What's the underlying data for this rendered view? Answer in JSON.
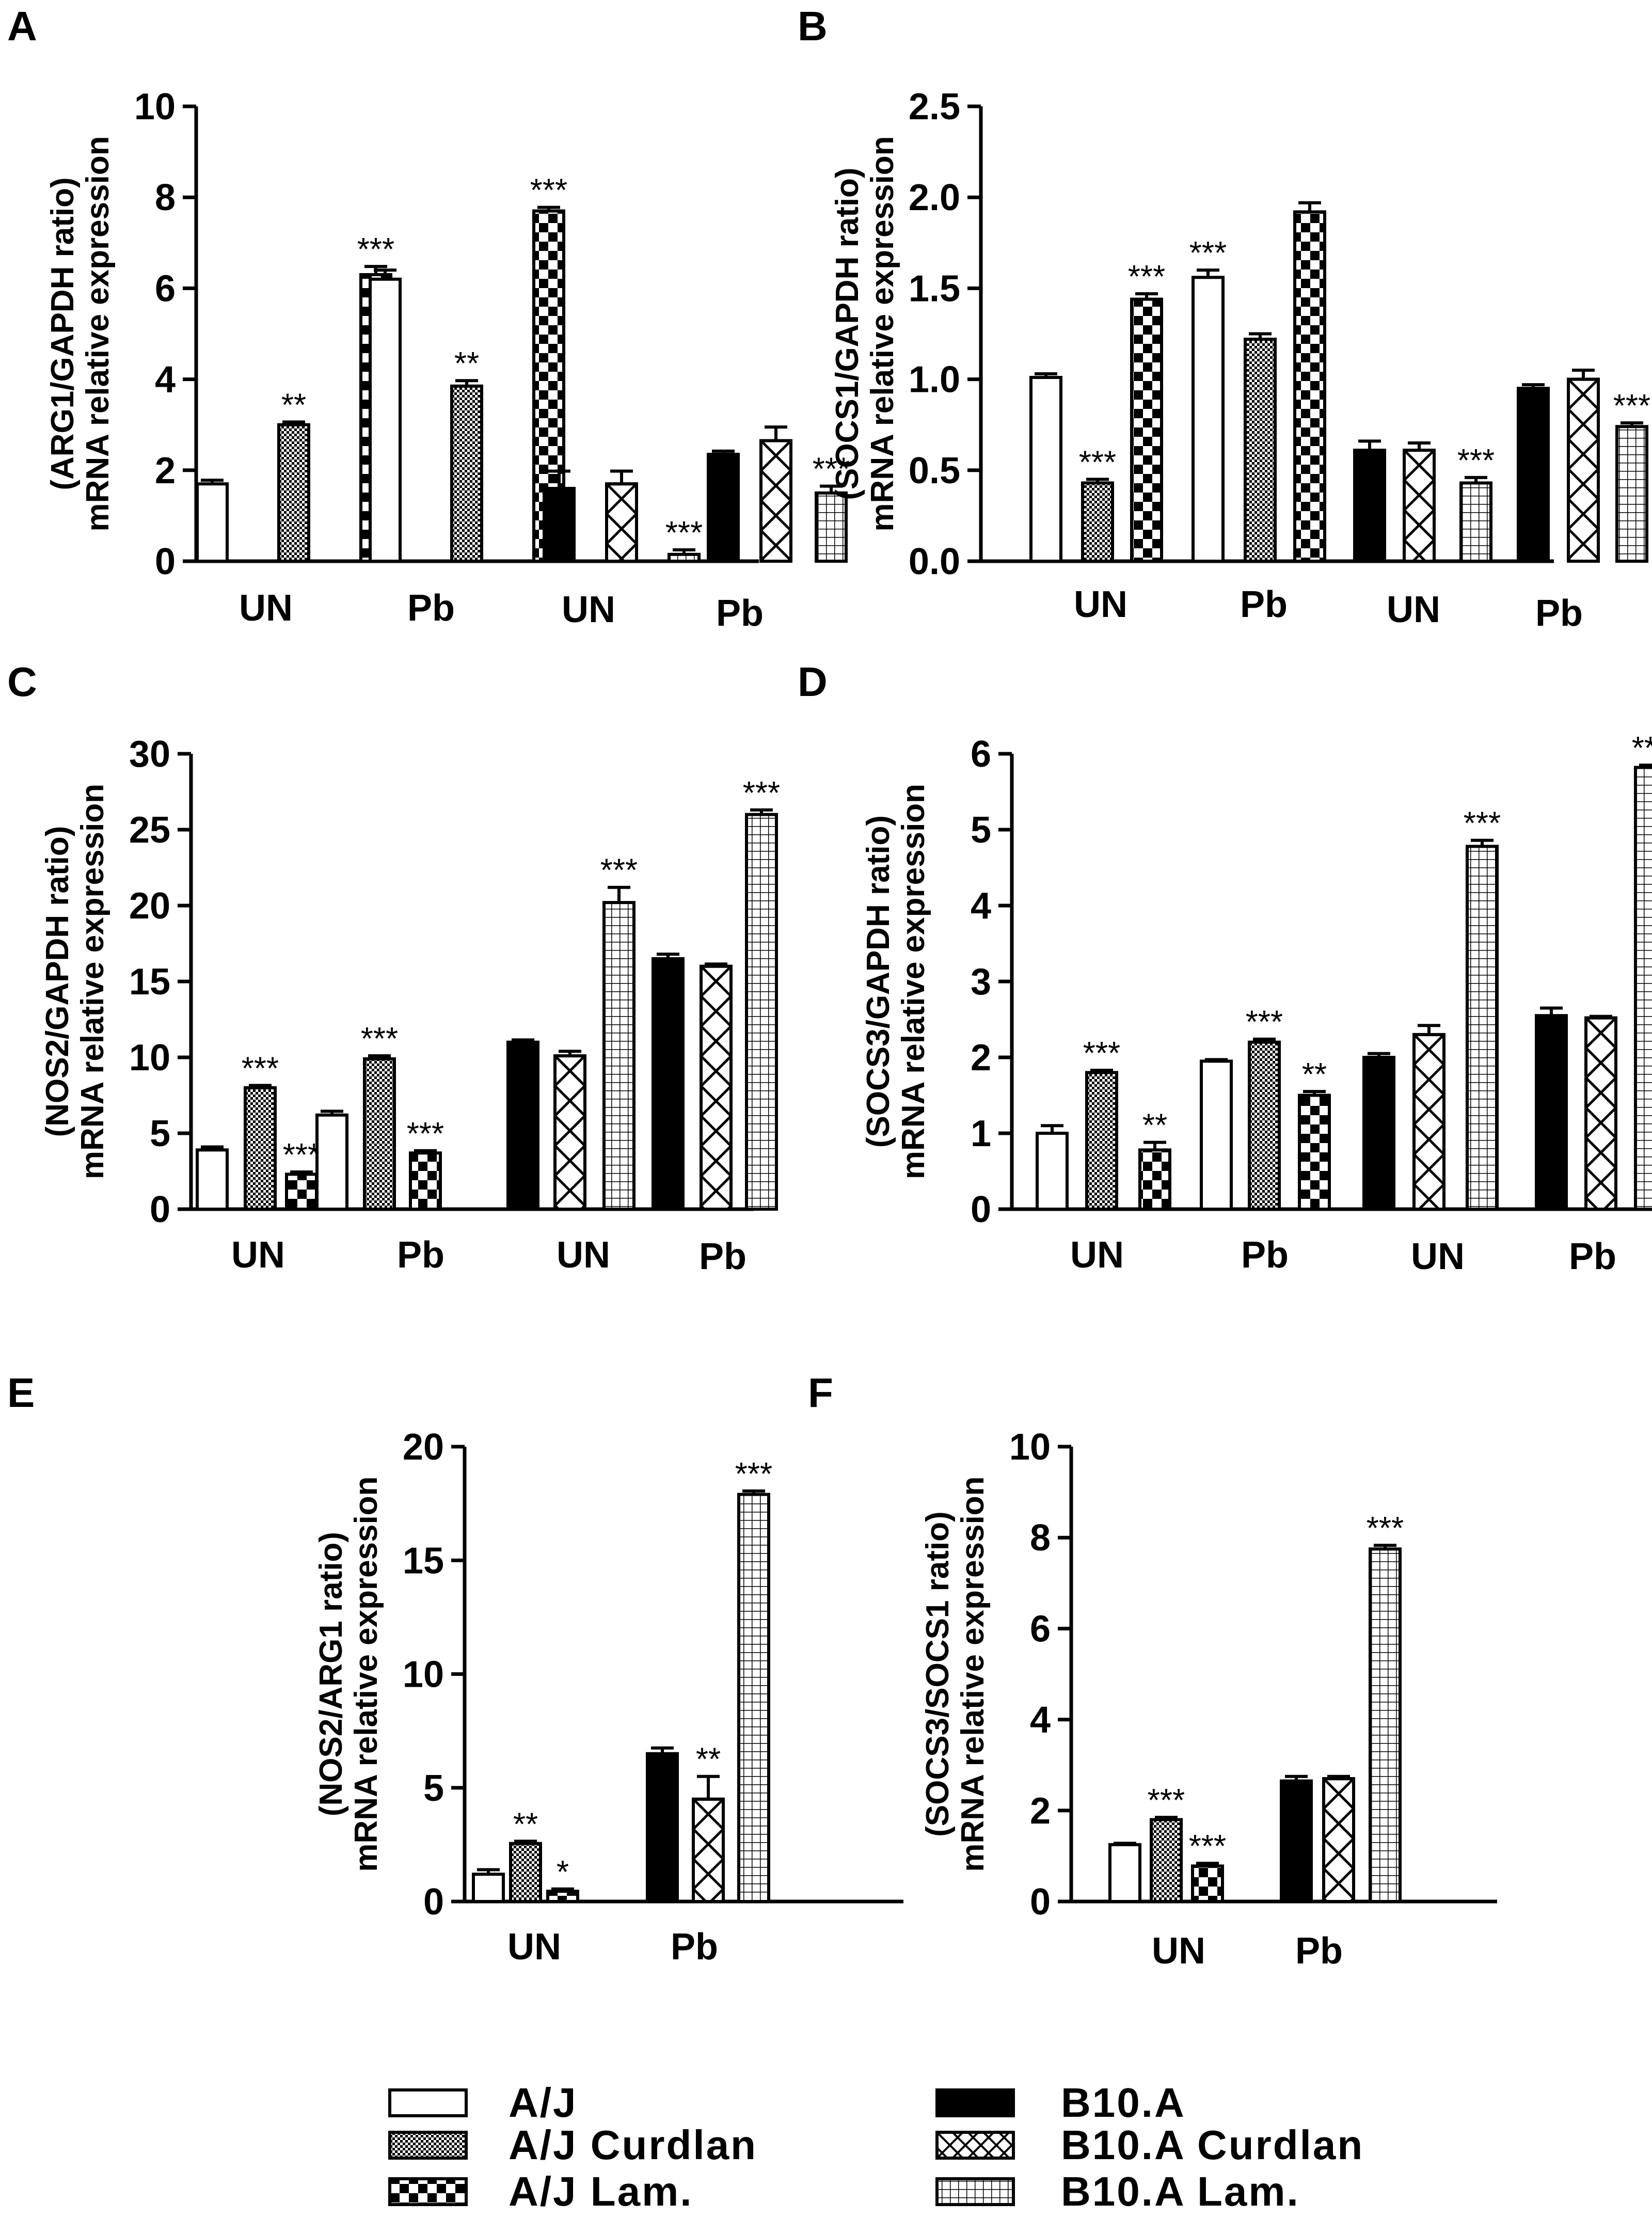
{
  "legend": [
    {
      "key": "aj",
      "label": "A/J"
    },
    {
      "key": "aj_curdlan",
      "label": "A/J Curdlan"
    },
    {
      "key": "aj_lam",
      "label": "A/J Lam."
    },
    {
      "key": "b10a",
      "label": "B10.A"
    },
    {
      "key": "b10a_curdlan",
      "label": "B10.A Curdlan"
    },
    {
      "key": "b10a_lam",
      "label": "B10.A Lam."
    }
  ],
  "chart_data": [
    {
      "panel": "A",
      "type": "bar",
      "ylabel_line1": "(ARG1/GAPDH ratio)",
      "ylabel_line2": "mRNA relative expression",
      "ylim": [
        0,
        10
      ],
      "yticks": [
        "0",
        "2",
        "4",
        "6",
        "8",
        "10"
      ],
      "groups": [
        {
          "label": "UN",
          "bars": [
            {
              "series": "aj",
              "value": 1.7,
              "err": 0.08,
              "sig": ""
            },
            {
              "series": "aj_curdlan",
              "value": 3.0,
              "err": 0.06,
              "sig": "**"
            },
            {
              "series": "aj_lam",
              "value": 6.3,
              "err": 0.18,
              "sig": "***"
            }
          ]
        },
        {
          "label": "Pb",
          "bars": [
            {
              "series": "aj",
              "value": 6.2,
              "err": 0.2,
              "sig": ""
            },
            {
              "series": "aj_curdlan",
              "value": 3.85,
              "err": 0.12,
              "sig": "**"
            },
            {
              "series": "aj_lam",
              "value": 7.7,
              "err": 0.08,
              "sig": "***"
            }
          ]
        },
        {
          "label": "UN",
          "bars": [
            {
              "series": "b10a",
              "value": 1.6,
              "err": 0.38,
              "sig": ""
            },
            {
              "series": "b10a_curdlan",
              "value": 1.7,
              "err": 0.28,
              "sig": ""
            },
            {
              "series": "b10a_lam",
              "value": 0.15,
              "err": 0.1,
              "sig": "***"
            }
          ]
        },
        {
          "label": "Pb",
          "bars": [
            {
              "series": "b10a",
              "value": 2.35,
              "err": 0.07,
              "sig": ""
            },
            {
              "series": "b10a_curdlan",
              "value": 2.65,
              "err": 0.3,
              "sig": ""
            },
            {
              "series": "b10a_lam",
              "value": 1.5,
              "err": 0.15,
              "sig": "***"
            }
          ]
        }
      ]
    },
    {
      "panel": "B",
      "type": "bar",
      "ylabel_line1": "(SOCS1/GAPDH ratio)",
      "ylabel_line2": "mRNA relative expression",
      "ylim": [
        0,
        2.5
      ],
      "yticks": [
        "0.0",
        "0.5",
        "1.0",
        "1.5",
        "2.0",
        "2.5"
      ],
      "groups": [
        {
          "label": "UN",
          "bars": [
            {
              "series": "aj",
              "value": 1.01,
              "err": 0.02,
              "sig": ""
            },
            {
              "series": "aj_curdlan",
              "value": 0.43,
              "err": 0.02,
              "sig": "***"
            },
            {
              "series": "aj_lam",
              "value": 1.44,
              "err": 0.03,
              "sig": "***"
            }
          ]
        },
        {
          "label": "Pb",
          "bars": [
            {
              "series": "aj",
              "value": 1.56,
              "err": 0.04,
              "sig": "***"
            },
            {
              "series": "aj_curdlan",
              "value": 1.22,
              "err": 0.03,
              "sig": ""
            },
            {
              "series": "aj_lam",
              "value": 1.92,
              "err": 0.05,
              "sig": ""
            }
          ]
        },
        {
          "label": "UN",
          "bars": [
            {
              "series": "b10a",
              "value": 0.61,
              "err": 0.05,
              "sig": ""
            },
            {
              "series": "b10a_curdlan",
              "value": 0.61,
              "err": 0.04,
              "sig": ""
            },
            {
              "series": "b10a_lam",
              "value": 0.43,
              "err": 0.03,
              "sig": "***"
            }
          ]
        },
        {
          "label": "Pb",
          "bars": [
            {
              "series": "b10a",
              "value": 0.95,
              "err": 0.02,
              "sig": ""
            },
            {
              "series": "b10a_curdlan",
              "value": 1.0,
              "err": 0.05,
              "sig": ""
            },
            {
              "series": "b10a_lam",
              "value": 0.74,
              "err": 0.02,
              "sig": "***"
            }
          ]
        }
      ]
    },
    {
      "panel": "C",
      "type": "bar",
      "ylabel_line1": "(NOS2/GAPDH ratio)",
      "ylabel_line2": "mRNA relative expression",
      "ylim": [
        0,
        30
      ],
      "yticks": [
        "0",
        "5",
        "10",
        "15",
        "20",
        "25",
        "30"
      ],
      "groups": [
        {
          "label": "UN",
          "bars": [
            {
              "series": "aj",
              "value": 3.9,
              "err": 0.2,
              "sig": ""
            },
            {
              "series": "aj_curdlan",
              "value": 8.0,
              "err": 0.15,
              "sig": "***"
            },
            {
              "series": "aj_lam",
              "value": 2.3,
              "err": 0.15,
              "sig": "***"
            }
          ]
        },
        {
          "label": "Pb",
          "bars": [
            {
              "series": "aj",
              "value": 6.2,
              "err": 0.25,
              "sig": ""
            },
            {
              "series": "aj_curdlan",
              "value": 9.9,
              "err": 0.2,
              "sig": "***"
            },
            {
              "series": "aj_lam",
              "value": 3.7,
              "err": 0.15,
              "sig": "***"
            }
          ]
        },
        {
          "label": "UN",
          "bars": [
            {
              "series": "b10a",
              "value": 11.0,
              "err": 0.15,
              "sig": ""
            },
            {
              "series": "b10a_curdlan",
              "value": 10.1,
              "err": 0.3,
              "sig": ""
            },
            {
              "series": "b10a_lam",
              "value": 20.2,
              "err": 1.0,
              "sig": "***"
            }
          ]
        },
        {
          "label": "Pb",
          "bars": [
            {
              "series": "b10a",
              "value": 16.5,
              "err": 0.3,
              "sig": ""
            },
            {
              "series": "b10a_curdlan",
              "value": 16.0,
              "err": 0.15,
              "sig": ""
            },
            {
              "series": "b10a_lam",
              "value": 26.0,
              "err": 0.3,
              "sig": "***"
            }
          ]
        }
      ]
    },
    {
      "panel": "D",
      "type": "bar",
      "ylabel_line1": "(SOCS3/GAPDH ratio)",
      "ylabel_line2": "mRNA relative expression",
      "ylim": [
        0,
        6
      ],
      "yticks": [
        "0",
        "1",
        "2",
        "3",
        "4",
        "5",
        "6"
      ],
      "groups": [
        {
          "label": "UN",
          "bars": [
            {
              "series": "aj",
              "value": 1.0,
              "err": 0.1,
              "sig": ""
            },
            {
              "series": "aj_curdlan",
              "value": 1.8,
              "err": 0.03,
              "sig": "***"
            },
            {
              "series": "aj_lam",
              "value": 0.78,
              "err": 0.1,
              "sig": "**"
            }
          ]
        },
        {
          "label": "Pb",
          "bars": [
            {
              "series": "aj",
              "value": 1.95,
              "err": 0.02,
              "sig": ""
            },
            {
              "series": "aj_curdlan",
              "value": 2.2,
              "err": 0.04,
              "sig": "***"
            },
            {
              "series": "aj_lam",
              "value": 1.5,
              "err": 0.05,
              "sig": "**"
            }
          ]
        },
        {
          "label": "UN",
          "bars": [
            {
              "series": "b10a",
              "value": 2.0,
              "err": 0.05,
              "sig": ""
            },
            {
              "series": "b10a_curdlan",
              "value": 2.3,
              "err": 0.12,
              "sig": ""
            },
            {
              "series": "b10a_lam",
              "value": 4.78,
              "err": 0.08,
              "sig": "***"
            }
          ]
        },
        {
          "label": "Pb",
          "bars": [
            {
              "series": "b10a",
              "value": 2.55,
              "err": 0.1,
              "sig": ""
            },
            {
              "series": "b10a_curdlan",
              "value": 2.52,
              "err": 0.02,
              "sig": ""
            },
            {
              "series": "b10a_lam",
              "value": 5.82,
              "err": 0.03,
              "sig": "***"
            }
          ]
        }
      ]
    },
    {
      "panel": "E",
      "type": "bar",
      "ylabel_line1": "(NOS2/ARG1 ratio)",
      "ylabel_line2": "mRNA relative expression",
      "ylim": [
        0,
        20
      ],
      "yticks": [
        "0",
        "5",
        "10",
        "15",
        "20"
      ],
      "groups": [
        {
          "label": "UN",
          "bars": [
            {
              "series": "aj",
              "value": 1.2,
              "err": 0.2,
              "sig": ""
            },
            {
              "series": "aj_curdlan",
              "value": 2.55,
              "err": 0.1,
              "sig": "**"
            },
            {
              "series": "aj_lam",
              "value": 0.45,
              "err": 0.1,
              "sig": "*"
            }
          ]
        },
        {
          "label": "Pb",
          "bars": [
            {
              "series": "b10a",
              "value": 6.5,
              "err": 0.25,
              "sig": ""
            },
            {
              "series": "b10a_curdlan",
              "value": 4.5,
              "err": 1.0,
              "sig": "**"
            },
            {
              "series": "b10a_lam",
              "value": 17.9,
              "err": 0.15,
              "sig": "***"
            }
          ]
        }
      ]
    },
    {
      "panel": "F",
      "type": "bar",
      "ylabel_line1": "(SOCS3/SOCS1 ratio)",
      "ylabel_line2": "mRNA relative expression",
      "ylim": [
        0,
        10
      ],
      "yticks": [
        "0",
        "2",
        "4",
        "6",
        "8",
        "10"
      ],
      "groups": [
        {
          "label": "UN",
          "bars": [
            {
              "series": "aj",
              "value": 1.25,
              "err": 0.03,
              "sig": ""
            },
            {
              "series": "aj_curdlan",
              "value": 1.8,
              "err": 0.05,
              "sig": "***"
            },
            {
              "series": "aj_lam",
              "value": 0.78,
              "err": 0.06,
              "sig": "***"
            }
          ]
        },
        {
          "label": "Pb",
          "bars": [
            {
              "series": "b10a",
              "value": 2.65,
              "err": 0.1,
              "sig": ""
            },
            {
              "series": "b10a_curdlan",
              "value": 2.7,
              "err": 0.05,
              "sig": ""
            },
            {
              "series": "b10a_lam",
              "value": 7.75,
              "err": 0.08,
              "sig": "***"
            }
          ]
        }
      ]
    }
  ]
}
